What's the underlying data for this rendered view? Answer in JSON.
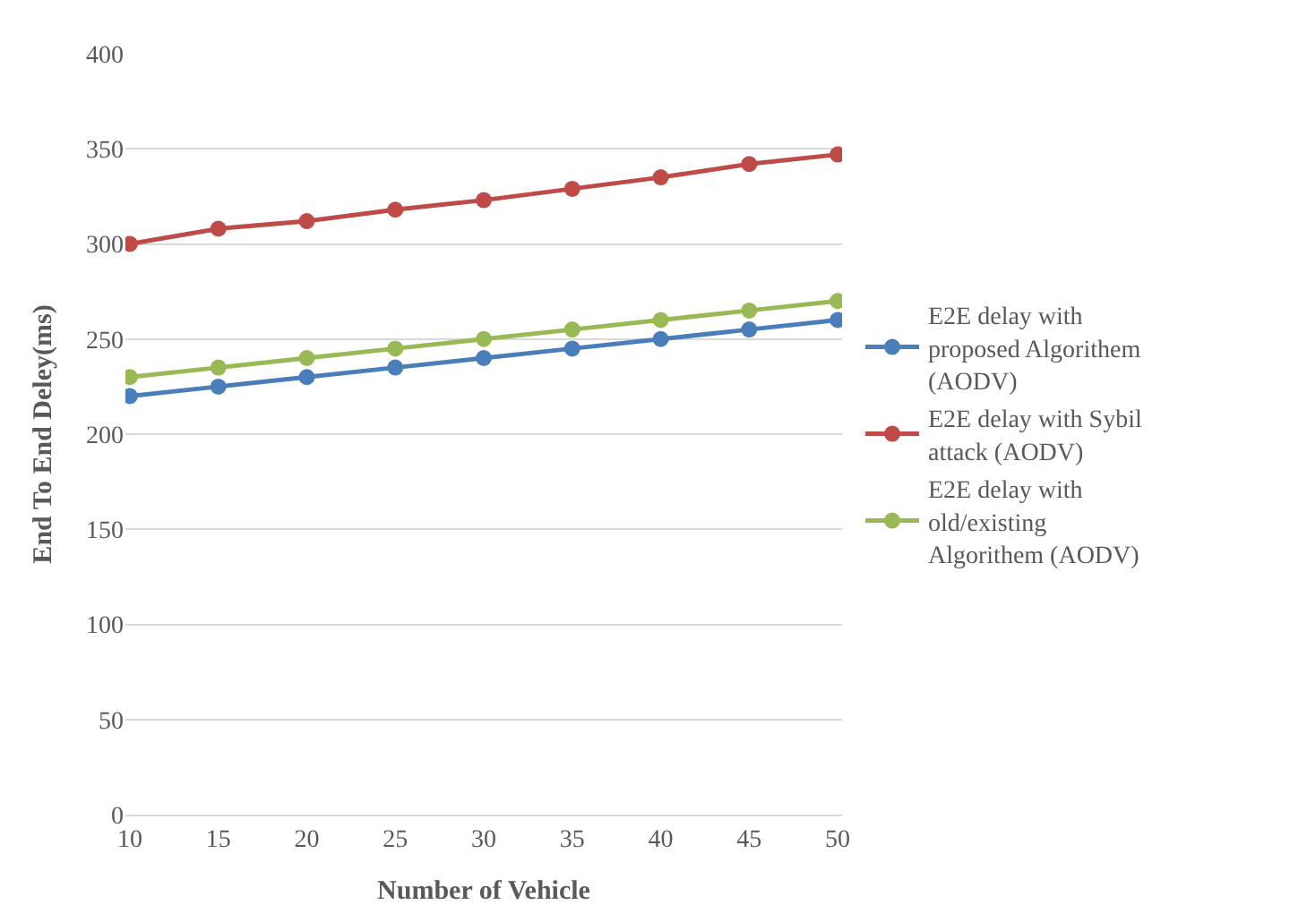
{
  "chart_data": {
    "type": "line",
    "xlabel": "Number of Vehicle",
    "ylabel": "End To End Deley(ms)",
    "categories": [
      "10",
      "15",
      "20",
      "25",
      "30",
      "35",
      "40",
      "45",
      "50"
    ],
    "series": [
      {
        "name": "E2E delay with proposed Algorithem (AODV)",
        "color": "#4a7ebb",
        "values": [
          220,
          225,
          230,
          235,
          240,
          245,
          250,
          255,
          260
        ]
      },
      {
        "name": "E2E delay with Sybil attack (AODV)",
        "color": "#be4b48",
        "values": [
          300,
          308,
          312,
          318,
          323,
          329,
          335,
          342,
          347
        ]
      },
      {
        "name": "E2E delay with old/existing Algorithem (AODV)",
        "color": "#98b954",
        "values": [
          230,
          235,
          240,
          245,
          250,
          255,
          260,
          265,
          270
        ]
      }
    ],
    "ylim": [
      0,
      400
    ],
    "yticks": [
      0,
      50,
      100,
      150,
      200,
      250,
      300,
      350,
      400
    ],
    "grid": "y",
    "legend": "right",
    "marker": "circle",
    "line_style": "solid"
  }
}
